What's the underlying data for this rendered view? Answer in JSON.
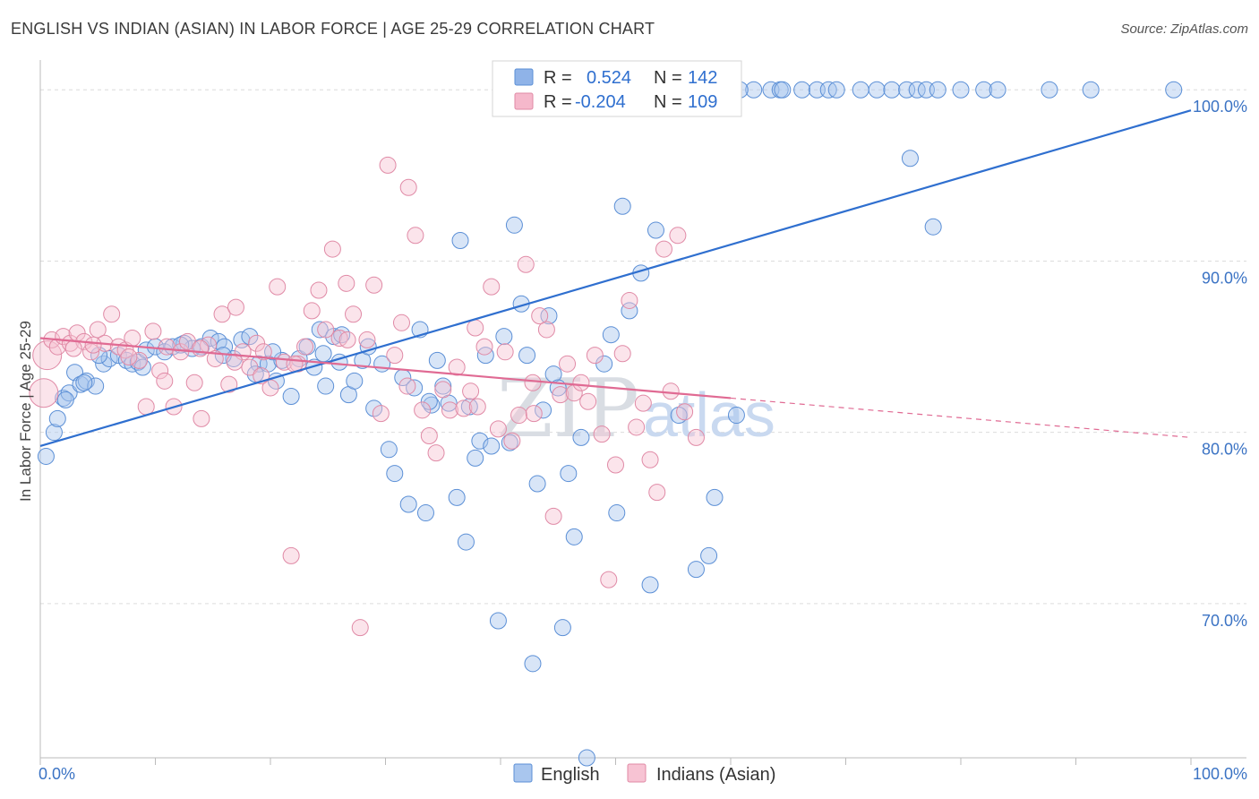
{
  "title": "ENGLISH VS INDIAN (ASIAN) IN LABOR FORCE | AGE 25-29 CORRELATION CHART",
  "source": "Source: ZipAtlas.com",
  "legend_top": [
    {
      "r_label": "R =",
      "r_value": "0.524",
      "n_label": "N =",
      "n_value": "142",
      "color": "#8fb3e8",
      "stroke": "#5b8fd6"
    },
    {
      "r_label": "R =",
      "r_value": "-0.204",
      "n_label": "N =",
      "n_value": "109",
      "color": "#f5b8cb",
      "stroke": "#e08aa6"
    }
  ],
  "watermark": {
    "zip": "ZIP",
    "atlas": "atlas"
  },
  "chart_data": {
    "type": "scatter",
    "xlabel": "",
    "ylabel": "In Labor Force | Age 25-29",
    "xlim": [
      0,
      100
    ],
    "ylim": [
      61,
      102
    ],
    "x_ticks": [
      "0.0%",
      "100.0%"
    ],
    "y_ticks": [
      {
        "value": 70,
        "label": "70.0%"
      },
      {
        "value": 80,
        "label": "80.0%"
      },
      {
        "value": 90,
        "label": "90.0%"
      },
      {
        "value": 100,
        "label": "100.0%"
      }
    ],
    "grid": true,
    "legend": "bottom-center",
    "series": [
      {
        "name": "English",
        "color": "#a9c6ee",
        "stroke": "#5b8fd6",
        "trend": {
          "x": [
            0,
            100
          ],
          "y": [
            79.2,
            98.8
          ],
          "color": "#2f6fcf"
        },
        "points": [
          [
            0.5,
            78.6
          ],
          [
            1.2,
            80
          ],
          [
            1.5,
            80.8
          ],
          [
            2,
            82
          ],
          [
            2.5,
            82.3
          ],
          [
            3,
            83.5
          ],
          [
            3.5,
            82.8
          ],
          [
            4,
            83
          ],
          [
            4.8,
            82.7
          ],
          [
            5.5,
            84
          ],
          [
            6,
            84.3
          ],
          [
            6.8,
            84.5
          ],
          [
            7.5,
            84.2
          ],
          [
            8,
            84
          ],
          [
            8.5,
            84.1
          ],
          [
            9.2,
            84.8
          ],
          [
            10,
            85
          ],
          [
            10.8,
            84.7
          ],
          [
            11.5,
            85
          ],
          [
            12.5,
            85.2
          ],
          [
            13.2,
            84.9
          ],
          [
            14,
            85
          ],
          [
            14.8,
            85.5
          ],
          [
            15.5,
            85.3
          ],
          [
            16,
            85
          ],
          [
            16.8,
            84.3
          ],
          [
            17.5,
            85.4
          ],
          [
            18.2,
            85.6
          ],
          [
            19,
            84
          ],
          [
            19.8,
            84
          ],
          [
            20.5,
            83
          ],
          [
            21,
            84.2
          ],
          [
            21.8,
            82.1
          ],
          [
            22.5,
            84.3
          ],
          [
            23.2,
            85
          ],
          [
            23.8,
            83.8
          ],
          [
            24.3,
            86
          ],
          [
            24.8,
            82.7
          ],
          [
            25.5,
            85.6
          ],
          [
            26.2,
            85.7
          ],
          [
            26.8,
            82.2
          ],
          [
            27.3,
            83
          ],
          [
            28,
            84.2
          ],
          [
            28.5,
            85
          ],
          [
            29,
            81.4
          ],
          [
            29.7,
            84
          ],
          [
            30.3,
            79
          ],
          [
            30.8,
            77.6
          ],
          [
            31.5,
            83.2
          ],
          [
            32,
            75.8
          ],
          [
            32.5,
            82.6
          ],
          [
            33,
            86
          ],
          [
            33.5,
            75.3
          ],
          [
            34,
            81.6
          ],
          [
            34.5,
            84.2
          ],
          [
            35,
            82.7
          ],
          [
            35.5,
            81.7
          ],
          [
            36.2,
            76.2
          ],
          [
            36.5,
            91.2
          ],
          [
            37,
            73.6
          ],
          [
            37.8,
            78.5
          ],
          [
            38.2,
            79.5
          ],
          [
            38.7,
            84.5
          ],
          [
            39.2,
            79.2
          ],
          [
            39.8,
            69
          ],
          [
            40.3,
            85.6
          ],
          [
            40.8,
            79.4
          ],
          [
            41.2,
            92.1
          ],
          [
            41.8,
            87.5
          ],
          [
            42.3,
            84.5
          ],
          [
            42.8,
            66.5
          ],
          [
            43.2,
            77
          ],
          [
            43.7,
            81.3
          ],
          [
            44.2,
            86.8
          ],
          [
            44.6,
            83.4
          ],
          [
            45,
            82.6
          ],
          [
            45.4,
            68.6
          ],
          [
            45.9,
            77.6
          ],
          [
            46.4,
            73.9
          ],
          [
            47,
            79.7
          ],
          [
            47.5,
            61
          ],
          [
            49,
            84
          ],
          [
            49.6,
            85.7
          ],
          [
            50.1,
            75.3
          ],
          [
            50.6,
            93.2
          ],
          [
            51.2,
            87.1
          ],
          [
            52.2,
            89.3
          ],
          [
            53,
            71.1
          ],
          [
            53.5,
            91.8
          ],
          [
            55.5,
            81
          ],
          [
            57,
            72
          ],
          [
            58.1,
            72.8
          ],
          [
            58.6,
            76.2
          ],
          [
            60.5,
            81
          ],
          [
            62,
            100
          ],
          [
            63.5,
            100
          ],
          [
            64.3,
            100
          ],
          [
            66.2,
            100
          ],
          [
            67.5,
            100
          ],
          [
            68.5,
            100
          ],
          [
            71.3,
            100
          ],
          [
            72.7,
            100
          ],
          [
            74,
            100
          ],
          [
            75.3,
            100
          ],
          [
            75.6,
            96
          ],
          [
            76.2,
            100
          ],
          [
            77,
            100
          ],
          [
            78,
            100
          ],
          [
            80,
            100
          ],
          [
            82,
            100
          ],
          [
            83.2,
            100
          ],
          [
            87.7,
            100
          ],
          [
            91.3,
            100
          ],
          [
            98.5,
            100
          ],
          [
            46.6,
            100
          ],
          [
            50.2,
            100
          ],
          [
            51.9,
            100
          ],
          [
            53.6,
            100
          ],
          [
            56.1,
            100
          ],
          [
            57.5,
            100
          ],
          [
            59.2,
            100
          ],
          [
            60.8,
            100
          ],
          [
            64.5,
            100
          ],
          [
            69.2,
            100
          ],
          [
            77.6,
            92
          ],
          [
            37.3,
            81.5
          ],
          [
            24.6,
            84.6
          ],
          [
            18.7,
            83.4
          ],
          [
            12.2,
            85.1
          ],
          [
            8.9,
            83.8
          ],
          [
            5.1,
            84.5
          ],
          [
            3.8,
            82.9
          ],
          [
            2.2,
            81.9
          ],
          [
            15.9,
            84.5
          ],
          [
            20.2,
            84.7
          ],
          [
            26,
            84.1
          ],
          [
            33.8,
            81.8
          ]
        ]
      },
      {
        "name": "Indians (Asian)",
        "color": "#f7c3d3",
        "stroke": "#e08aa6",
        "trend": {
          "x": [
            0,
            60
          ],
          "y": [
            85.5,
            82
          ],
          "dash_x": [
            60,
            100
          ],
          "dash_y": [
            82,
            79.7
          ],
          "color": "#e06a93"
        },
        "points": [
          [
            0.3,
            82.3
          ],
          [
            0.6,
            84.5
          ],
          [
            1,
            85.4
          ],
          [
            1.5,
            85
          ],
          [
            2,
            85.6
          ],
          [
            2.6,
            85.2
          ],
          [
            3.2,
            85.8
          ],
          [
            3.8,
            85.3
          ],
          [
            4.4,
            84.7
          ],
          [
            5,
            86
          ],
          [
            5.6,
            85.2
          ],
          [
            6.2,
            86.9
          ],
          [
            6.8,
            85
          ],
          [
            7.4,
            84.8
          ],
          [
            8,
            85.5
          ],
          [
            8.6,
            84.2
          ],
          [
            9.2,
            81.5
          ],
          [
            9.8,
            85.9
          ],
          [
            10.4,
            83.6
          ],
          [
            11,
            85
          ],
          [
            11.6,
            81.5
          ],
          [
            12.2,
            84.7
          ],
          [
            12.8,
            85.3
          ],
          [
            13.4,
            82.9
          ],
          [
            14,
            80.8
          ],
          [
            14.6,
            85.1
          ],
          [
            15.2,
            84.3
          ],
          [
            15.8,
            86.9
          ],
          [
            16.4,
            82.8
          ],
          [
            17,
            87.3
          ],
          [
            17.6,
            84.7
          ],
          [
            18.2,
            83.8
          ],
          [
            18.8,
            85.2
          ],
          [
            19.4,
            84.7
          ],
          [
            20,
            82.6
          ],
          [
            20.6,
            88.5
          ],
          [
            21.2,
            84.1
          ],
          [
            21.8,
            72.8
          ],
          [
            22.4,
            84
          ],
          [
            23,
            85
          ],
          [
            23.6,
            87.1
          ],
          [
            24.2,
            88.3
          ],
          [
            24.8,
            86
          ],
          [
            25.4,
            90.7
          ],
          [
            26,
            85.5
          ],
          [
            26.6,
            88.7
          ],
          [
            27.2,
            86.9
          ],
          [
            27.8,
            68.6
          ],
          [
            28.4,
            85.4
          ],
          [
            29,
            88.6
          ],
          [
            29.6,
            81.1
          ],
          [
            30.2,
            95.6
          ],
          [
            30.8,
            84.5
          ],
          [
            31.4,
            86.4
          ],
          [
            32,
            94.3
          ],
          [
            32.6,
            91.5
          ],
          [
            33.2,
            81.3
          ],
          [
            33.8,
            79.8
          ],
          [
            34.4,
            78.8
          ],
          [
            35,
            82.5
          ],
          [
            35.6,
            81.3
          ],
          [
            36.2,
            83.8
          ],
          [
            36.8,
            81.4
          ],
          [
            37.4,
            82.4
          ],
          [
            38,
            81.5
          ],
          [
            38.6,
            85
          ],
          [
            39.2,
            88.5
          ],
          [
            39.8,
            80.2
          ],
          [
            40.4,
            84.7
          ],
          [
            41,
            79.5
          ],
          [
            41.6,
            81
          ],
          [
            42.2,
            89.8
          ],
          [
            42.8,
            82.9
          ],
          [
            43.4,
            86.8
          ],
          [
            44,
            86
          ],
          [
            44.6,
            75.1
          ],
          [
            45.2,
            82.2
          ],
          [
            45.8,
            84
          ],
          [
            46.4,
            82.3
          ],
          [
            47,
            82.9
          ],
          [
            47.6,
            81.8
          ],
          [
            48.2,
            84.5
          ],
          [
            48.8,
            79.9
          ],
          [
            49.4,
            71.4
          ],
          [
            50,
            78.1
          ],
          [
            50.6,
            84.6
          ],
          [
            51.2,
            87.7
          ],
          [
            51.8,
            80.3
          ],
          [
            52.4,
            81.7
          ],
          [
            53,
            78.4
          ],
          [
            53.6,
            76.5
          ],
          [
            54.2,
            90.7
          ],
          [
            54.8,
            82.4
          ],
          [
            55.4,
            91.5
          ],
          [
            56,
            81.2
          ],
          [
            57,
            79.7
          ],
          [
            22.1,
            84
          ],
          [
            19.2,
            83.3
          ],
          [
            16.9,
            84.1
          ],
          [
            13.9,
            84.9
          ],
          [
            10.8,
            83
          ],
          [
            7.7,
            84.4
          ],
          [
            4.6,
            85.1
          ],
          [
            2.9,
            84.9
          ],
          [
            26.7,
            85.4
          ],
          [
            31.9,
            82.7
          ],
          [
            37.8,
            86.1
          ],
          [
            42.9,
            81.1
          ]
        ]
      }
    ]
  }
}
